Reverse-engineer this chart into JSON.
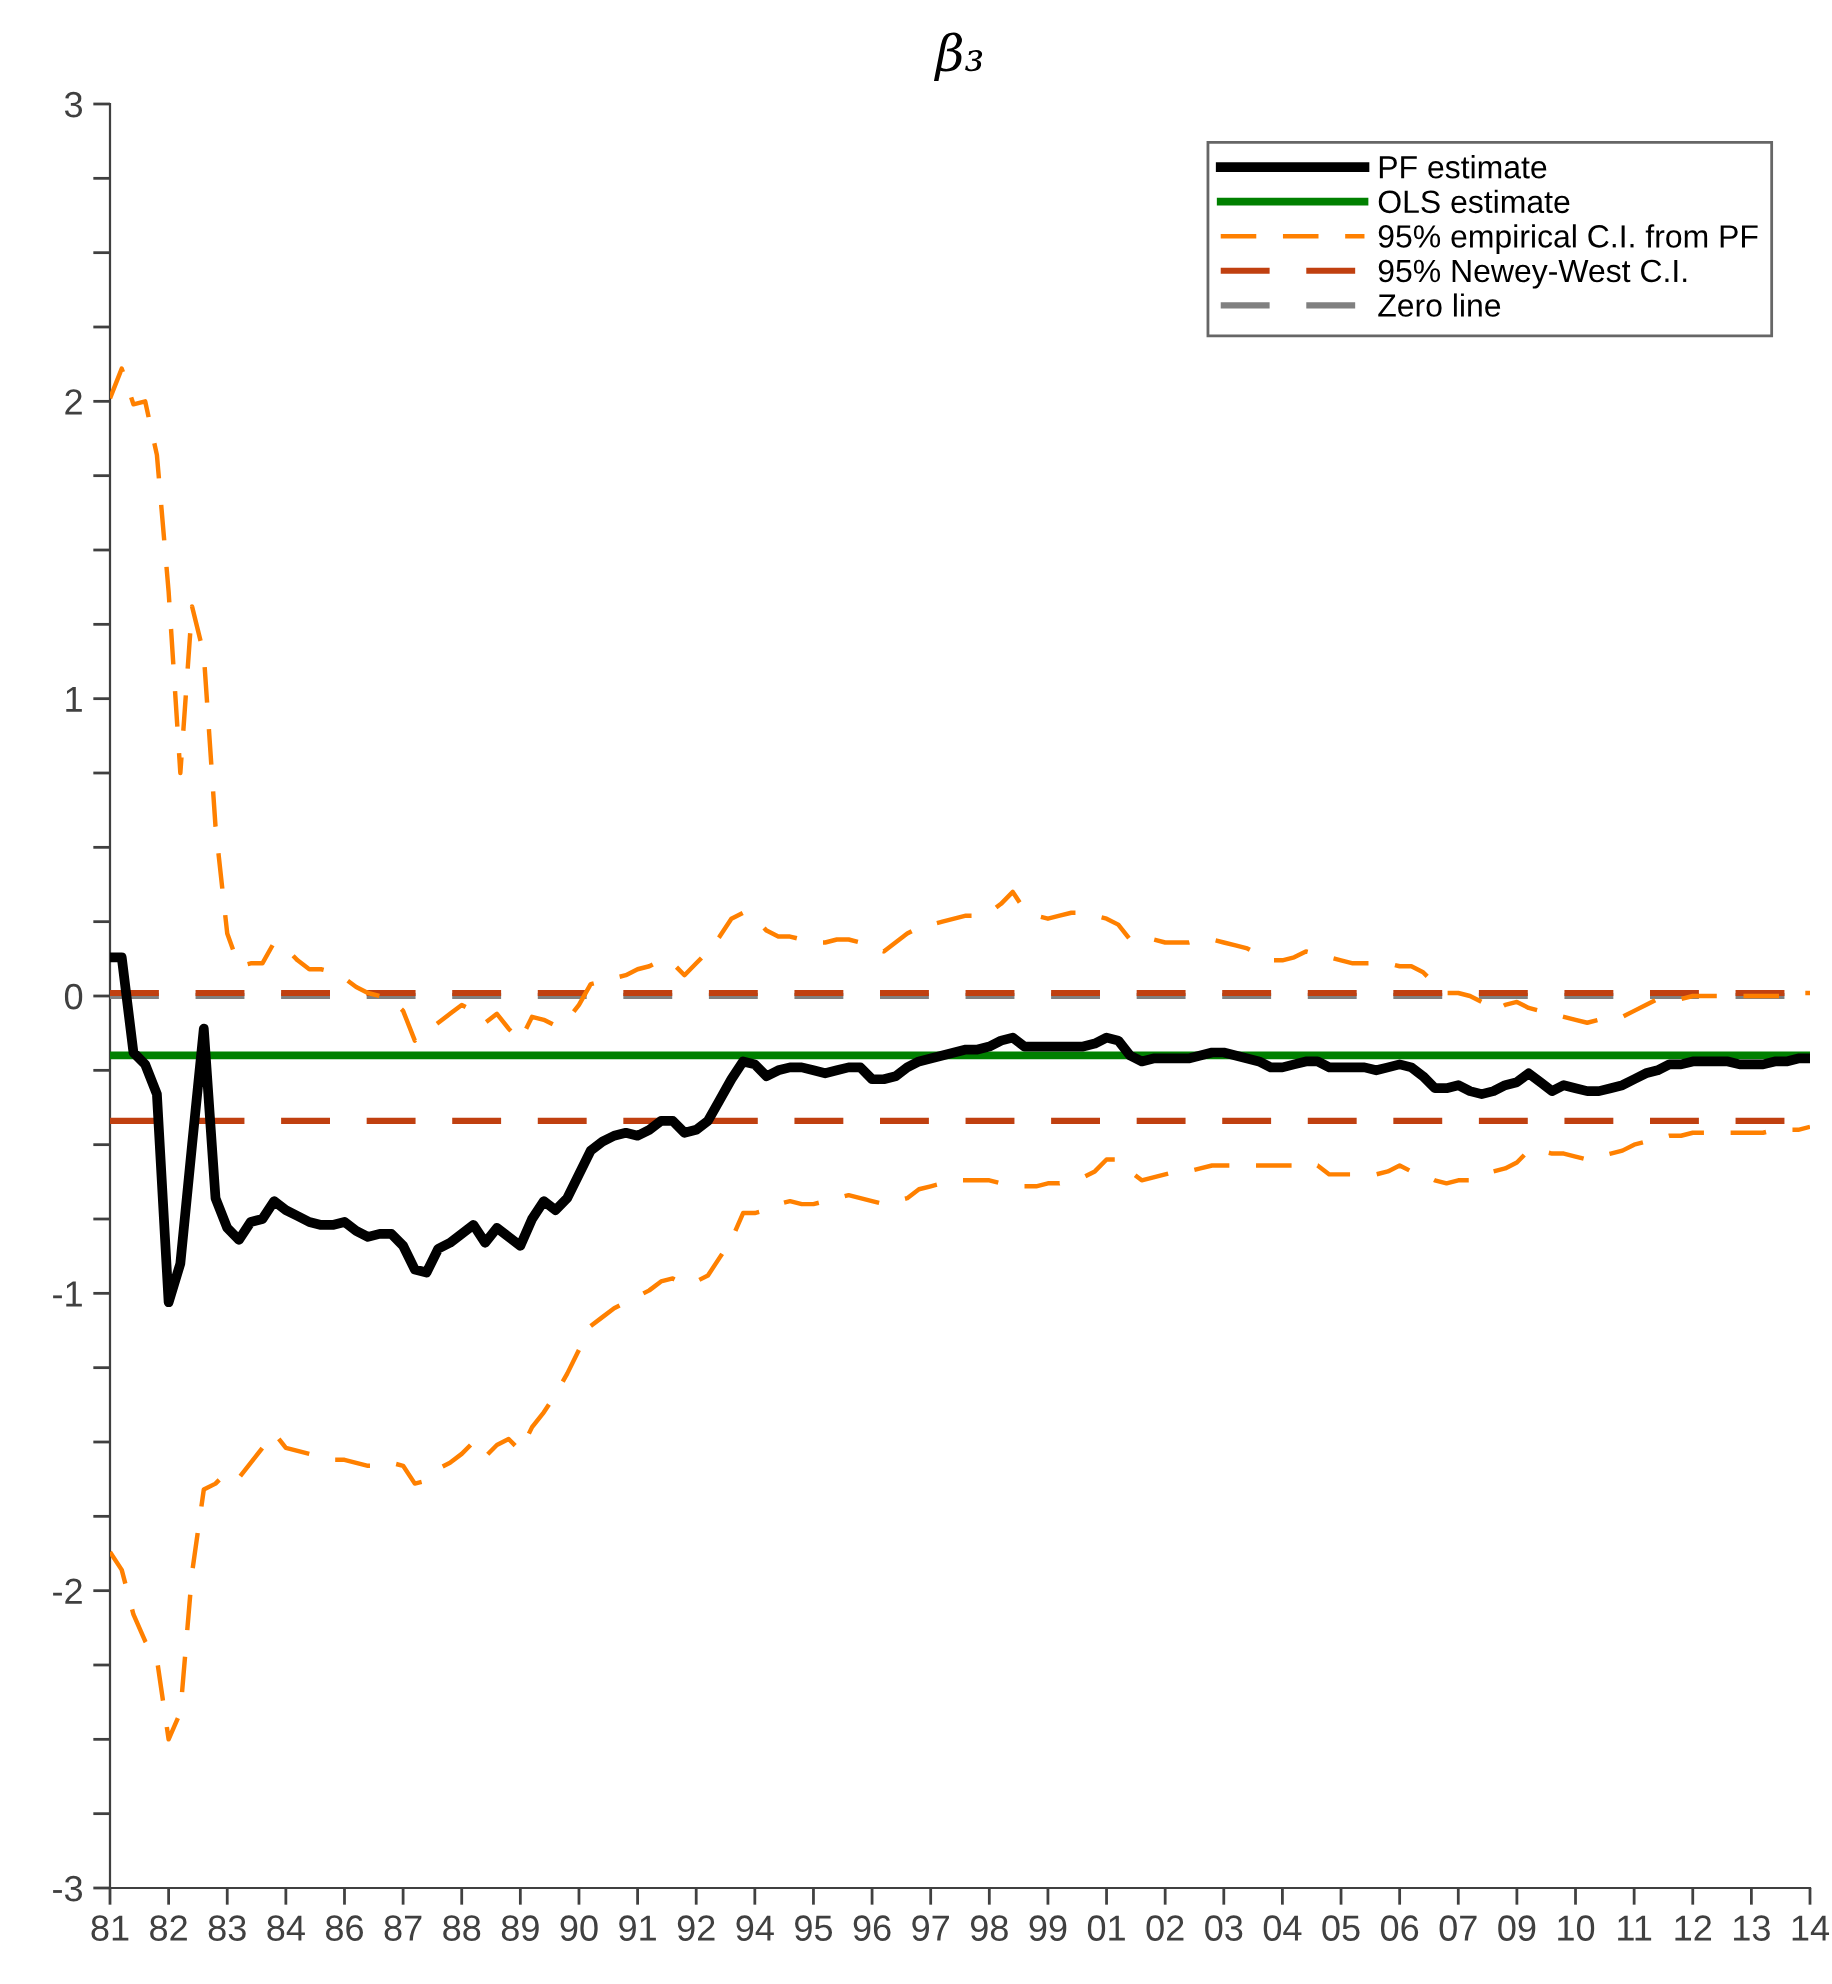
{
  "chart_data": {
    "type": "line",
    "title": "β₃",
    "categories": [
      "81",
      null,
      null,
      null,
      null,
      "82",
      null,
      null,
      null,
      null,
      "83",
      null,
      null,
      null,
      null,
      "84",
      null,
      null,
      null,
      null,
      "86",
      null,
      null,
      null,
      null,
      "87",
      null,
      null,
      null,
      null,
      "88",
      null,
      null,
      null,
      null,
      "89",
      null,
      null,
      null,
      null,
      "90",
      null,
      null,
      null,
      null,
      "91",
      null,
      null,
      null,
      null,
      "92",
      null,
      null,
      null,
      null,
      "94",
      null,
      null,
      null,
      null,
      "95",
      null,
      null,
      null,
      null,
      "96",
      null,
      null,
      null,
      null,
      "97",
      null,
      null,
      null,
      null,
      "98",
      null,
      null,
      null,
      null,
      "99",
      null,
      null,
      null,
      null,
      "01",
      null,
      null,
      null,
      null,
      "02",
      null,
      null,
      null,
      null,
      "03",
      null,
      null,
      null,
      null,
      "04",
      null,
      null,
      null,
      null,
      "05",
      null,
      null,
      null,
      null,
      "06",
      null,
      null,
      null,
      null,
      "07",
      null,
      null,
      null,
      null,
      "09",
      null,
      null,
      null,
      null,
      "10",
      null,
      null,
      null,
      null,
      "11",
      null,
      null,
      null,
      null,
      "12",
      null,
      null,
      null,
      null,
      "13",
      null,
      null,
      null,
      null,
      "14"
    ],
    "ylim": [
      -3,
      3
    ],
    "yticks": [
      -3,
      {
        "value": -2.75,
        "label": null
      },
      {
        "value": -2.5,
        "label": null
      },
      {
        "value": -2.25,
        "label": null
      },
      -2,
      {
        "value": -1.75,
        "label": null
      },
      {
        "value": -1.5,
        "label": null
      },
      {
        "value": -1.25,
        "label": null
      },
      -1,
      {
        "value": -0.75,
        "label": null
      },
      {
        "value": -0.5,
        "label": null
      },
      {
        "value": -0.25,
        "label": null
      },
      0,
      {
        "value": 0.25,
        "label": null
      },
      {
        "value": 0.5,
        "label": null
      },
      {
        "value": 0.75,
        "label": null
      },
      1,
      {
        "value": 1.25,
        "label": null
      },
      {
        "value": 1.5,
        "label": null
      },
      {
        "value": 1.75,
        "label": null
      },
      2,
      {
        "value": 2.25,
        "label": null
      },
      {
        "value": 2.5,
        "label": null
      },
      {
        "value": 2.75,
        "label": null
      },
      3
    ],
    "grid": false,
    "legend": "top right",
    "series": [
      {
        "name": "PF estimate",
        "color": "#000000",
        "line_style": "solid",
        "values": [
          0.13,
          0.13,
          -0.19,
          -0.23,
          -0.33,
          -1.03,
          -0.9,
          -0.5,
          -0.11,
          -0.68,
          -0.78,
          -0.82,
          -0.76,
          -0.75,
          -0.69,
          -0.72,
          -0.74,
          -0.76,
          -0.77,
          -0.77,
          -0.76,
          -0.79,
          -0.81,
          -0.8,
          -0.8,
          -0.84,
          -0.92,
          -0.93,
          -0.85,
          -0.83,
          -0.8,
          -0.77,
          -0.83,
          -0.78,
          -0.81,
          -0.84,
          -0.75,
          -0.69,
          -0.72,
          -0.68,
          -0.6,
          -0.52,
          -0.49,
          -0.47,
          -0.46,
          -0.47,
          -0.45,
          -0.42,
          -0.42,
          -0.46,
          -0.45,
          -0.42,
          -0.35,
          -0.28,
          -0.22,
          -0.23,
          -0.27,
          -0.25,
          -0.24,
          -0.24,
          -0.25,
          -0.26,
          -0.25,
          -0.24,
          -0.24,
          -0.28,
          -0.28,
          -0.27,
          -0.24,
          -0.22,
          -0.21,
          -0.2,
          -0.19,
          -0.18,
          -0.18,
          -0.17,
          -0.15,
          -0.14,
          -0.17,
          -0.17,
          -0.17,
          -0.17,
          -0.17,
          -0.17,
          -0.16,
          -0.14,
          -0.15,
          -0.2,
          -0.22,
          -0.21,
          -0.21,
          -0.21,
          -0.21,
          -0.2,
          -0.19,
          -0.19,
          -0.2,
          -0.21,
          -0.22,
          -0.24,
          -0.24,
          -0.23,
          -0.22,
          -0.22,
          -0.24,
          -0.24,
          -0.24,
          -0.24,
          -0.25,
          -0.24,
          -0.23,
          -0.24,
          -0.27,
          -0.31,
          -0.31,
          -0.3,
          -0.32,
          -0.33,
          -0.32,
          -0.3,
          -0.29,
          -0.26,
          -0.29,
          -0.32,
          -0.3,
          -0.31,
          -0.32,
          -0.32,
          -0.31,
          -0.3,
          -0.28,
          -0.26,
          -0.25,
          -0.23,
          -0.23,
          -0.22,
          -0.22,
          -0.22,
          -0.22,
          -0.23,
          -0.23,
          -0.23,
          -0.22,
          -0.22,
          -0.21,
          -0.21
        ]
      },
      {
        "name": "OLS estimate",
        "color": "#008000",
        "line_style": "solid",
        "values": [
          -0.2,
          -0.2,
          -0.2,
          -0.2,
          -0.2,
          -0.2,
          -0.2,
          -0.2,
          -0.2,
          -0.2,
          -0.2,
          -0.2,
          -0.2,
          -0.2,
          -0.2,
          -0.2,
          -0.2,
          -0.2,
          -0.2,
          -0.2,
          -0.2,
          -0.2,
          -0.2,
          -0.2,
          -0.2,
          -0.2,
          -0.2,
          -0.2,
          -0.2,
          -0.2,
          -0.2,
          -0.2,
          -0.2,
          -0.2,
          -0.2,
          -0.2,
          -0.2,
          -0.2,
          -0.2,
          -0.2,
          -0.2,
          -0.2,
          -0.2,
          -0.2,
          -0.2,
          -0.2,
          -0.2,
          -0.2,
          -0.2,
          -0.2,
          -0.2,
          -0.2,
          -0.2,
          -0.2,
          -0.2,
          -0.2,
          -0.2,
          -0.2,
          -0.2,
          -0.2,
          -0.2,
          -0.2,
          -0.2,
          -0.2,
          -0.2,
          -0.2,
          -0.2,
          -0.2,
          -0.2,
          -0.2,
          -0.2,
          -0.2,
          -0.2,
          -0.2,
          -0.2,
          -0.2,
          -0.2,
          -0.2,
          -0.2,
          -0.2,
          -0.2,
          -0.2,
          -0.2,
          -0.2,
          -0.2,
          -0.2,
          -0.2,
          -0.2,
          -0.2,
          -0.2,
          -0.2,
          -0.2,
          -0.2,
          -0.2,
          -0.2,
          -0.2,
          -0.2,
          -0.2,
          -0.2,
          -0.2,
          -0.2,
          -0.2,
          -0.2,
          -0.2,
          -0.2,
          -0.2,
          -0.2,
          -0.2,
          -0.2,
          -0.2,
          -0.2,
          -0.2,
          -0.2,
          -0.2,
          -0.2,
          -0.2,
          -0.2,
          -0.2,
          -0.2,
          -0.2,
          -0.2,
          -0.2,
          -0.2,
          -0.2,
          -0.2,
          -0.2,
          -0.2,
          -0.2,
          -0.2,
          -0.2,
          -0.2,
          -0.2,
          -0.2,
          -0.2,
          -0.2,
          -0.2,
          -0.2,
          -0.2,
          -0.2,
          -0.2,
          -0.2,
          -0.2,
          -0.2,
          -0.2,
          -0.2,
          -0.2
        ]
      },
      {
        "name": "95% empirical C.I. from PF",
        "color": "#ff8000",
        "line_style": "dashed",
        "values": [
          2.01,
          2.11,
          1.99,
          2.0,
          1.82,
          1.36,
          0.75,
          1.31,
          1.15,
          0.57,
          0.21,
          0.1,
          0.11,
          0.11,
          0.18,
          0.16,
          0.12,
          0.09,
          0.09,
          0.08,
          0.06,
          0.03,
          0.01,
          0.0,
          -0.01,
          -0.05,
          -0.15,
          -0.12,
          -0.09,
          -0.06,
          -0.03,
          -0.05,
          -0.09,
          -0.06,
          -0.11,
          -0.15,
          -0.07,
          -0.08,
          -0.1,
          -0.08,
          -0.03,
          0.04,
          0.05,
          0.06,
          0.07,
          0.09,
          0.1,
          0.12,
          0.11,
          0.07,
          0.11,
          0.15,
          0.2,
          0.26,
          0.28,
          0.26,
          0.22,
          0.2,
          0.2,
          0.19,
          0.18,
          0.18,
          0.19,
          0.19,
          0.18,
          0.16,
          0.15,
          0.18,
          0.21,
          0.23,
          0.24,
          0.25,
          0.26,
          0.27,
          0.27,
          0.28,
          0.31,
          0.35,
          0.29,
          0.27,
          0.26,
          0.27,
          0.28,
          0.28,
          0.27,
          0.26,
          0.24,
          0.19,
          0.18,
          0.19,
          0.18,
          0.18,
          0.18,
          0.19,
          0.19,
          0.18,
          0.17,
          0.16,
          0.14,
          0.12,
          0.12,
          0.13,
          0.15,
          0.14,
          0.13,
          0.12,
          0.11,
          0.11,
          0.11,
          0.11,
          0.1,
          0.1,
          0.08,
          0.04,
          0.01,
          0.01,
          0.0,
          -0.02,
          -0.05,
          -0.03,
          -0.02,
          -0.04,
          -0.05,
          -0.06,
          -0.07,
          -0.08,
          -0.09,
          -0.08,
          -0.08,
          -0.07,
          -0.05,
          -0.03,
          -0.01,
          -0.01,
          -0.01,
          0.0,
          0.0,
          0.0,
          0.0,
          0.0,
          0.0,
          0.0,
          0.0,
          0.0,
          0.01,
          0.01
        ]
      },
      {
        "color": "#ff8000",
        "line_style": "dashed",
        "values": [
          -1.87,
          -1.93,
          -2.08,
          -2.17,
          -2.23,
          -2.5,
          -2.41,
          -1.94,
          -1.66,
          -1.64,
          -1.6,
          -1.62,
          -1.57,
          -1.52,
          -1.47,
          -1.52,
          -1.53,
          -1.54,
          -1.55,
          -1.56,
          -1.56,
          -1.57,
          -1.58,
          -1.58,
          -1.57,
          -1.58,
          -1.64,
          -1.63,
          -1.59,
          -1.57,
          -1.54,
          -1.5,
          -1.55,
          -1.51,
          -1.49,
          -1.53,
          -1.45,
          -1.4,
          -1.34,
          -1.27,
          -1.19,
          -1.11,
          -1.08,
          -1.05,
          -1.03,
          -1.01,
          -0.99,
          -0.96,
          -0.95,
          -0.97,
          -0.96,
          -0.94,
          -0.88,
          -0.82,
          -0.73,
          -0.73,
          -0.72,
          -0.7,
          -0.69,
          -0.7,
          -0.7,
          -0.69,
          -0.68,
          -0.67,
          -0.68,
          -0.69,
          -0.7,
          -0.69,
          -0.68,
          -0.65,
          -0.64,
          -0.63,
          -0.62,
          -0.62,
          -0.62,
          -0.62,
          -0.63,
          -0.63,
          -0.64,
          -0.64,
          -0.63,
          -0.63,
          -0.62,
          -0.61,
          -0.59,
          -0.55,
          -0.55,
          -0.59,
          -0.62,
          -0.61,
          -0.6,
          -0.59,
          -0.59,
          -0.58,
          -0.57,
          -0.57,
          -0.57,
          -0.57,
          -0.57,
          -0.57,
          -0.57,
          -0.57,
          -0.56,
          -0.57,
          -0.6,
          -0.6,
          -0.6,
          -0.6,
          -0.6,
          -0.59,
          -0.57,
          -0.59,
          -0.6,
          -0.62,
          -0.63,
          -0.62,
          -0.62,
          -0.61,
          -0.59,
          -0.58,
          -0.56,
          -0.52,
          -0.52,
          -0.53,
          -0.53,
          -0.54,
          -0.55,
          -0.54,
          -0.53,
          -0.52,
          -0.5,
          -0.49,
          -0.48,
          -0.47,
          -0.47,
          -0.46,
          -0.46,
          -0.46,
          -0.46,
          -0.46,
          -0.46,
          -0.46,
          -0.45,
          -0.45,
          -0.45,
          -0.44
        ]
      }
    ],
    "ref_lines": [
      {
        "axis": "y",
        "value": 0.01,
        "label": "95% Newey-West C.I.",
        "color": "#c04010",
        "line_style": "dashed"
      },
      {
        "axis": "y",
        "value": -0.42,
        "label": null,
        "color": "#c04010",
        "line_style": "dashed"
      },
      {
        "axis": "y",
        "value": 0,
        "label": "Zero line",
        "color": "#808080",
        "line_style": "dashed"
      }
    ]
  }
}
